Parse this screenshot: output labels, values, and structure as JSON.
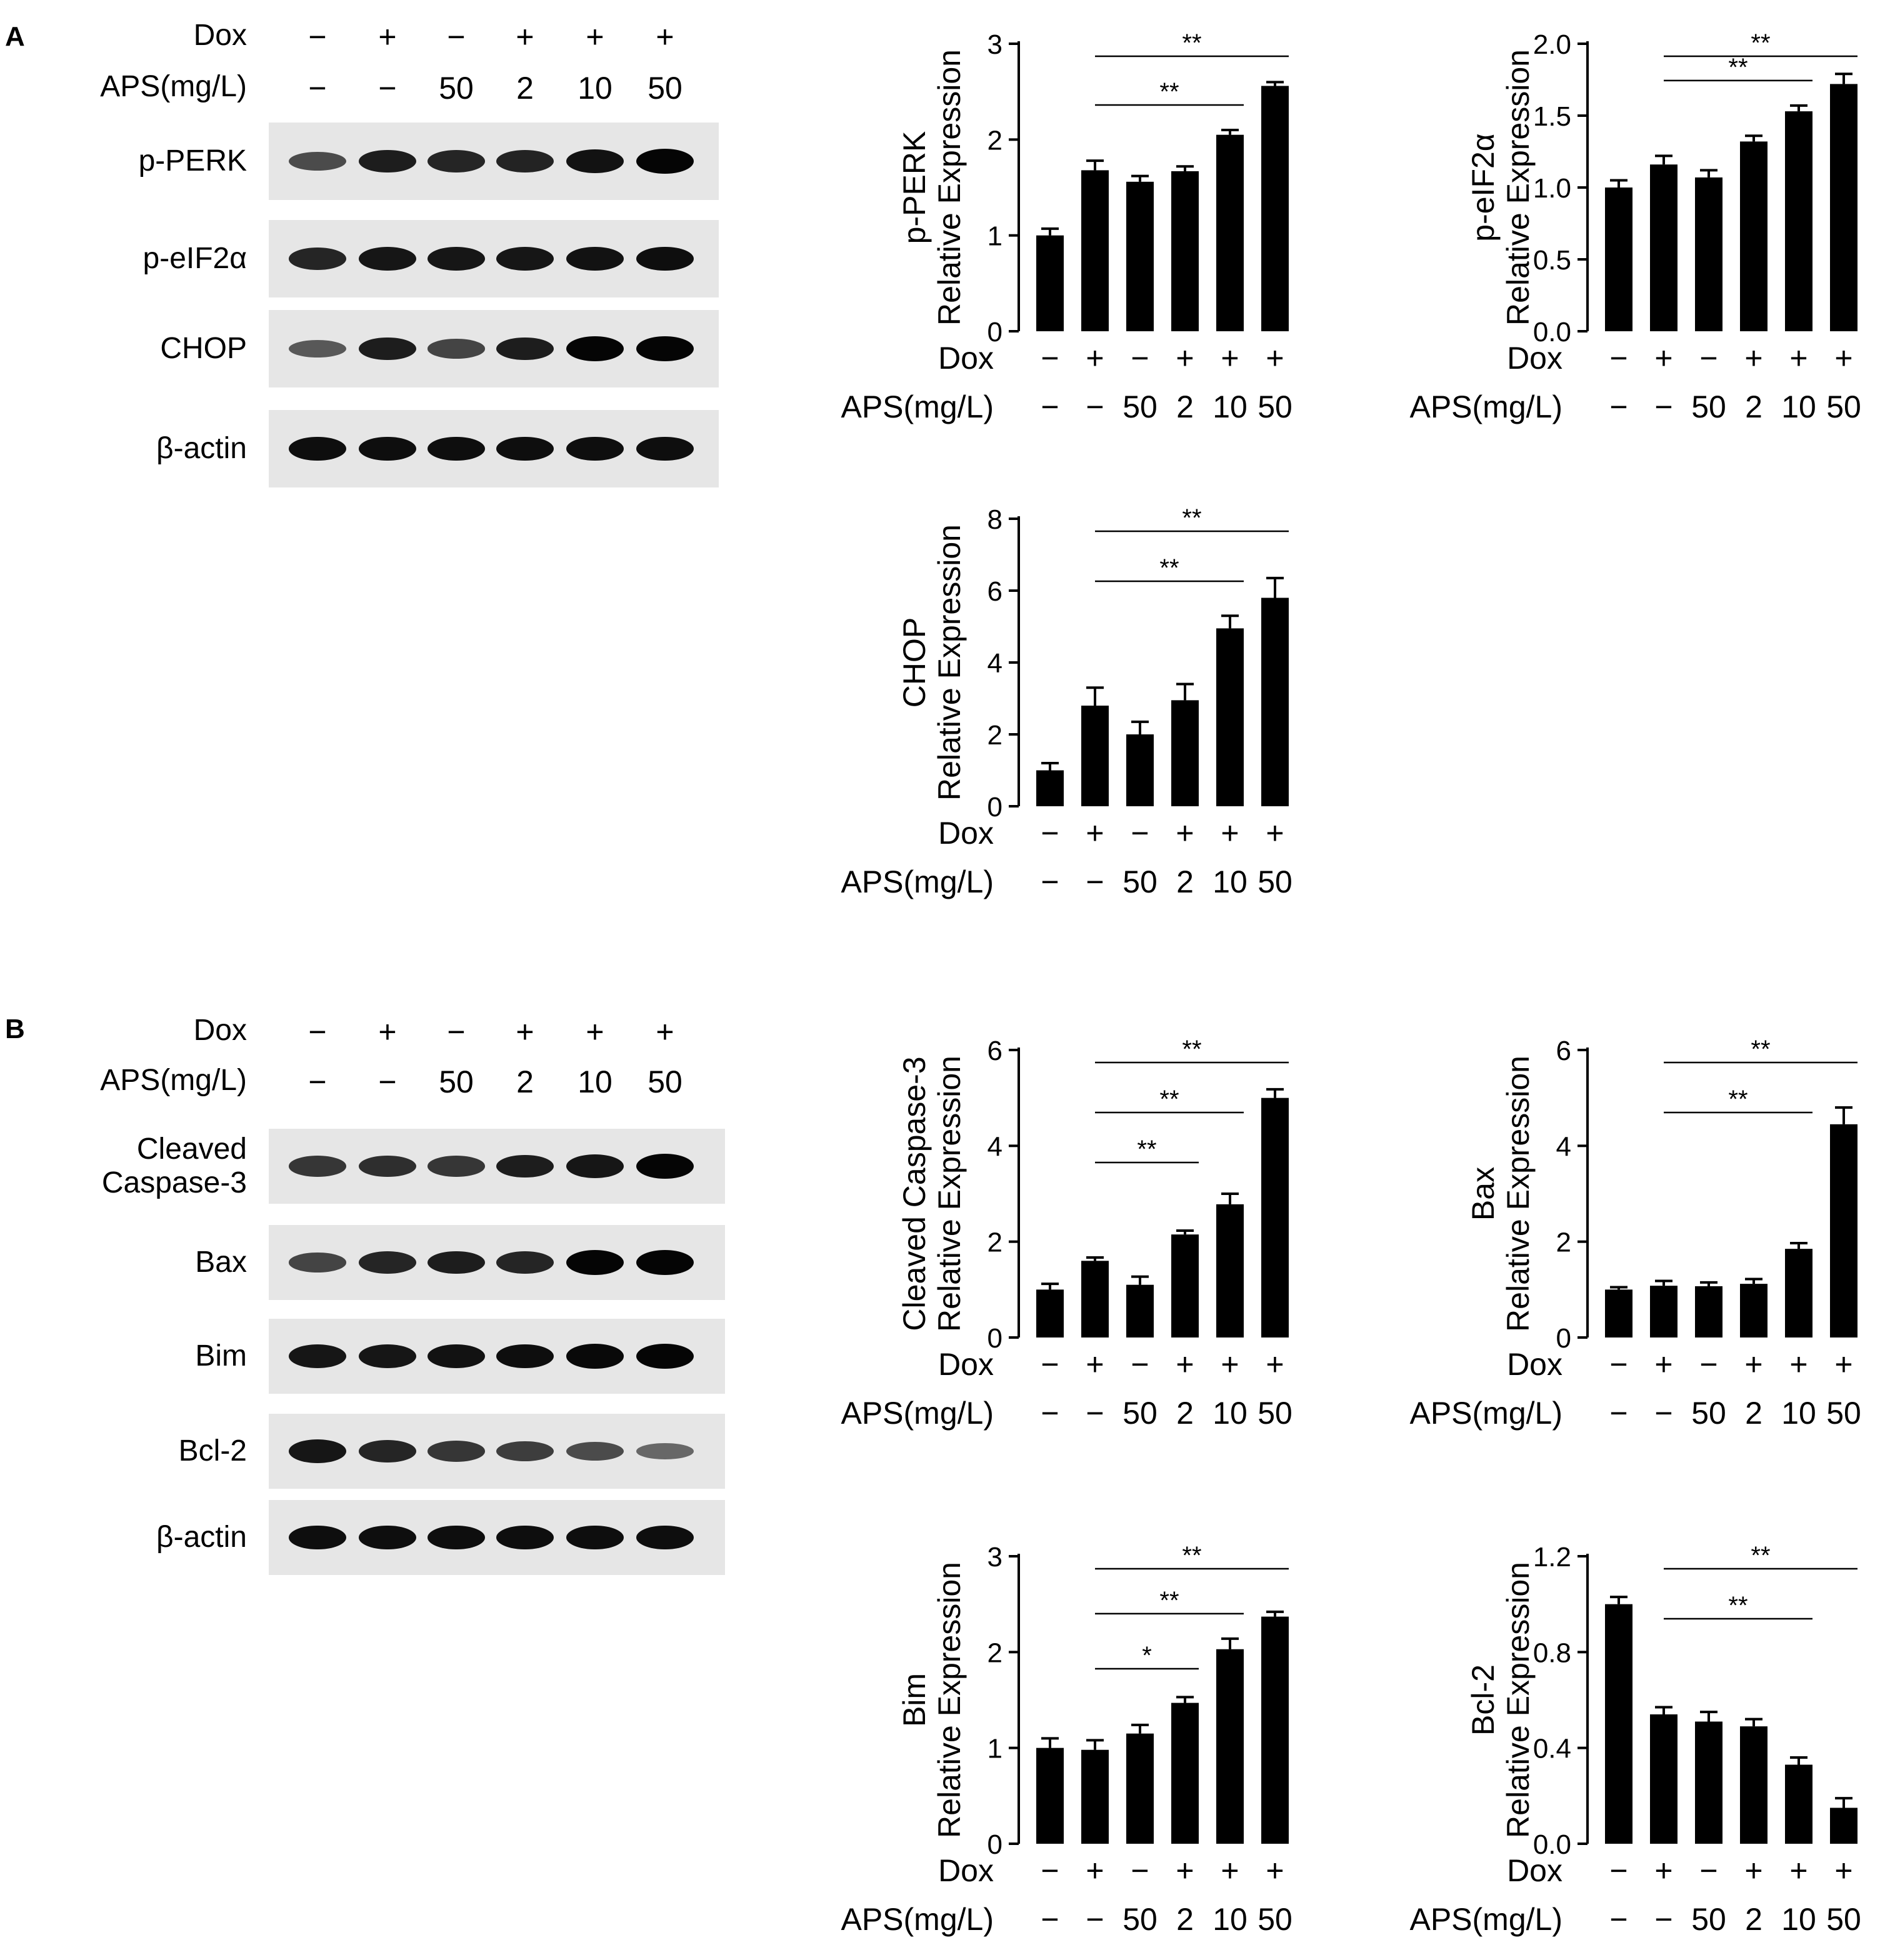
{
  "panels": [
    {
      "letter": "A",
      "blot": {
        "conditions": [
          {
            "label": "Dox",
            "values": [
              "−",
              "+",
              "−",
              "+",
              "+",
              "+"
            ]
          },
          {
            "label": "APS(mg/L)",
            "values": [
              "−",
              "−",
              "50",
              "2",
              "10",
              "50"
            ]
          }
        ],
        "rows": [
          "p-PERK",
          "p-eIF2α",
          "CHOP",
          "β-actin"
        ]
      }
    },
    {
      "letter": "B",
      "blot": {
        "conditions": [
          {
            "label": "Dox",
            "values": [
              "−",
              "+",
              "−",
              "+",
              "+",
              "+"
            ]
          },
          {
            "label": "APS(mg/L)",
            "values": [
              "−",
              "−",
              "50",
              "2",
              "10",
              "50"
            ]
          }
        ],
        "rows": [
          "Cleaved\nCaspase-3",
          "Bax",
          "Bim",
          "Bcl-2",
          "β-actin"
        ]
      }
    }
  ],
  "chart_data": [
    {
      "id": "pperk",
      "type": "bar",
      "ylabel": [
        "p-PERK",
        "Relative Expression"
      ],
      "categories": [
        "1",
        "2",
        "3",
        "4",
        "5",
        "6"
      ],
      "x_rows": [
        {
          "label": "Dox",
          "values": [
            "−",
            "+",
            "−",
            "+",
            "+",
            "+"
          ]
        },
        {
          "label": "APS(mg/L)",
          "values": [
            "−",
            "−",
            "50",
            "2",
            "10",
            "50"
          ]
        }
      ],
      "values": [
        1.0,
        1.68,
        1.56,
        1.67,
        2.05,
        2.56
      ],
      "errors": [
        0.07,
        0.1,
        0.06,
        0.05,
        0.05,
        0.04
      ],
      "ylim": [
        0,
        3
      ],
      "yticks": [
        "0",
        "1",
        "2",
        "3"
      ],
      "sig": [
        {
          "from": 1,
          "to": 4,
          "label": "**"
        },
        {
          "from": 1,
          "to": 5,
          "label": "**"
        }
      ]
    },
    {
      "id": "peif2a",
      "type": "bar",
      "ylabel": [
        "p-eIF2α",
        "Relative Expression"
      ],
      "categories": [
        "1",
        "2",
        "3",
        "4",
        "5",
        "6"
      ],
      "x_rows": [
        {
          "label": "Dox",
          "values": [
            "−",
            "+",
            "−",
            "+",
            "+",
            "+"
          ]
        },
        {
          "label": "APS(mg/L)",
          "values": [
            "−",
            "−",
            "50",
            "2",
            "10",
            "50"
          ]
        }
      ],
      "values": [
        1.0,
        1.16,
        1.07,
        1.32,
        1.53,
        1.72
      ],
      "errors": [
        0.05,
        0.06,
        0.05,
        0.04,
        0.04,
        0.07
      ],
      "ylim": [
        0,
        2.0
      ],
      "yticks": [
        "0.0",
        "0.5",
        "1.0",
        "1.5",
        "2.0"
      ],
      "sig": [
        {
          "from": 1,
          "to": 4,
          "label": "**"
        },
        {
          "from": 1,
          "to": 5,
          "label": "**"
        }
      ]
    },
    {
      "id": "chop",
      "type": "bar",
      "ylabel": [
        "CHOP",
        "Relative Expression"
      ],
      "categories": [
        "1",
        "2",
        "3",
        "4",
        "5",
        "6"
      ],
      "x_rows": [
        {
          "label": "Dox",
          "values": [
            "−",
            "+",
            "−",
            "+",
            "+",
            "+"
          ]
        },
        {
          "label": "APS(mg/L)",
          "values": [
            "−",
            "−",
            "50",
            "2",
            "10",
            "50"
          ]
        }
      ],
      "values": [
        1.0,
        2.8,
        2.0,
        2.95,
        4.95,
        5.8
      ],
      "errors": [
        0.2,
        0.5,
        0.35,
        0.45,
        0.35,
        0.55
      ],
      "ylim": [
        0,
        8
      ],
      "yticks": [
        "0",
        "2",
        "4",
        "6",
        "8"
      ],
      "sig": [
        {
          "from": 1,
          "to": 4,
          "label": "**"
        },
        {
          "from": 1,
          "to": 5,
          "label": "**"
        }
      ]
    },
    {
      "id": "casp3",
      "type": "bar",
      "ylabel": [
        "Cleaved Caspase-3",
        "Relative Expression"
      ],
      "categories": [
        "1",
        "2",
        "3",
        "4",
        "5",
        "6"
      ],
      "x_rows": [
        {
          "label": "Dox",
          "values": [
            "−",
            "+",
            "−",
            "+",
            "+",
            "+"
          ]
        },
        {
          "label": "APS(mg/L)",
          "values": [
            "−",
            "−",
            "50",
            "2",
            "10",
            "50"
          ]
        }
      ],
      "values": [
        1.0,
        1.6,
        1.1,
        2.15,
        2.78,
        5.0
      ],
      "errors": [
        0.12,
        0.07,
        0.17,
        0.08,
        0.22,
        0.18
      ],
      "ylim": [
        0,
        6
      ],
      "yticks": [
        "0",
        "2",
        "4",
        "6"
      ],
      "sig": [
        {
          "from": 1,
          "to": 3,
          "label": "**"
        },
        {
          "from": 1,
          "to": 4,
          "label": "**"
        },
        {
          "from": 1,
          "to": 5,
          "label": "**"
        }
      ]
    },
    {
      "id": "bax",
      "type": "bar",
      "ylabel": [
        "Bax",
        "Relative Expression"
      ],
      "categories": [
        "1",
        "2",
        "3",
        "4",
        "5",
        "6"
      ],
      "x_rows": [
        {
          "label": "Dox",
          "values": [
            "−",
            "+",
            "−",
            "+",
            "+",
            "+"
          ]
        },
        {
          "label": "APS(mg/L)",
          "values": [
            "−",
            "−",
            "50",
            "2",
            "10",
            "50"
          ]
        }
      ],
      "values": [
        1.0,
        1.08,
        1.07,
        1.12,
        1.85,
        4.45
      ],
      "errors": [
        0.05,
        0.1,
        0.08,
        0.1,
        0.12,
        0.35
      ],
      "ylim": [
        0,
        6
      ],
      "yticks": [
        "0",
        "2",
        "4",
        "6"
      ],
      "sig": [
        {
          "from": 1,
          "to": 4,
          "label": "**"
        },
        {
          "from": 1,
          "to": 5,
          "label": "**"
        }
      ]
    },
    {
      "id": "bim",
      "type": "bar",
      "ylabel": [
        "Bim",
        "Relative Expression"
      ],
      "categories": [
        "1",
        "2",
        "3",
        "4",
        "5",
        "6"
      ],
      "x_rows": [
        {
          "label": "Dox",
          "values": [
            "−",
            "+",
            "−",
            "+",
            "+",
            "+"
          ]
        },
        {
          "label": "APS(mg/L)",
          "values": [
            "−",
            "−",
            "50",
            "2",
            "10",
            "50"
          ]
        }
      ],
      "values": [
        1.0,
        0.98,
        1.15,
        1.47,
        2.03,
        2.37
      ],
      "errors": [
        0.1,
        0.1,
        0.09,
        0.06,
        0.11,
        0.05
      ],
      "ylim": [
        0,
        3
      ],
      "yticks": [
        "0",
        "1",
        "2",
        "3"
      ],
      "sig": [
        {
          "from": 1,
          "to": 3,
          "label": "*"
        },
        {
          "from": 1,
          "to": 4,
          "label": "**"
        },
        {
          "from": 1,
          "to": 5,
          "label": "**"
        }
      ]
    },
    {
      "id": "bcl2",
      "type": "bar",
      "ylabel": [
        "Bcl-2",
        "Relative Expression"
      ],
      "categories": [
        "1",
        "2",
        "3",
        "4",
        "5",
        "6"
      ],
      "x_rows": [
        {
          "label": "Dox",
          "values": [
            "−",
            "+",
            "−",
            "+",
            "+",
            "+"
          ]
        },
        {
          "label": "APS(mg/L)",
          "values": [
            "−",
            "−",
            "50",
            "2",
            "10",
            "50"
          ]
        }
      ],
      "values": [
        1.0,
        0.54,
        0.51,
        0.49,
        0.33,
        0.15
      ],
      "errors": [
        0.03,
        0.03,
        0.04,
        0.03,
        0.03,
        0.04
      ],
      "ylim": [
        0,
        1.2
      ],
      "yticks": [
        "0.0",
        "0.4",
        "0.8",
        "1.2"
      ],
      "sig": [
        {
          "from": 1,
          "to": 4,
          "label": "**"
        },
        {
          "from": 1,
          "to": 5,
          "label": "**"
        }
      ]
    }
  ]
}
